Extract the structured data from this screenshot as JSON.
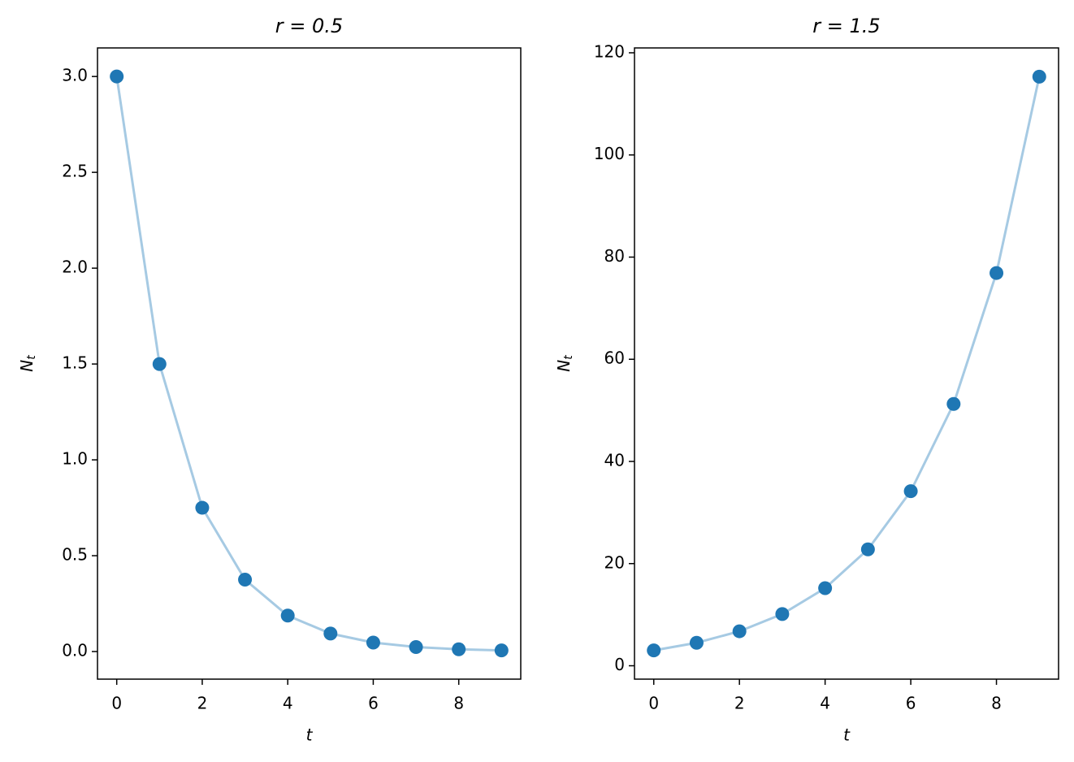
{
  "chart_data": [
    {
      "type": "line",
      "title": "r = 0.5",
      "xlabel": "t",
      "ylabel": "N_t",
      "x": [
        0,
        1,
        2,
        3,
        4,
        5,
        6,
        7,
        8,
        9
      ],
      "series": [
        {
          "color": "#1f77b4",
          "line_color": "#a6cae3",
          "values": [
            3,
            1.5,
            0.75,
            0.375,
            0.1875,
            0.09375,
            0.046875,
            0.0234375,
            0.01171875,
            0.005859375
          ]
        }
      ],
      "xlim": [
        -0.45,
        9.45
      ],
      "xticks": [
        0,
        2,
        4,
        6,
        8
      ],
      "ylim": [
        -0.144,
        3.149
      ],
      "yticks": [
        {
          "value": 0,
          "label": "0.0"
        },
        0.5,
        {
          "value": 1,
          "label": "1.0"
        },
        1.5,
        {
          "value": 2,
          "label": "2.0"
        },
        2.5,
        {
          "value": 3,
          "label": "3.0"
        }
      ]
    },
    {
      "type": "line",
      "title": "r = 1.5",
      "xlabel": "t",
      "ylabel": "N_t",
      "x": [
        0,
        1,
        2,
        3,
        4,
        5,
        6,
        7,
        8,
        9
      ],
      "series": [
        {
          "color": "#1f77b4",
          "line_color": "#a6cae3",
          "values": [
            3,
            4.5,
            6.75,
            10.125,
            15.1875,
            22.78125,
            34.171875,
            51.2578125,
            76.88671875,
            115.330078125
          ]
        }
      ],
      "xlim": [
        -0.45,
        9.45
      ],
      "xticks": [
        0,
        2,
        4,
        6,
        8
      ],
      "ylim": [
        -2.62,
        120.95
      ],
      "yticks": [
        0,
        20,
        40,
        60,
        80,
        100,
        120
      ]
    }
  ]
}
